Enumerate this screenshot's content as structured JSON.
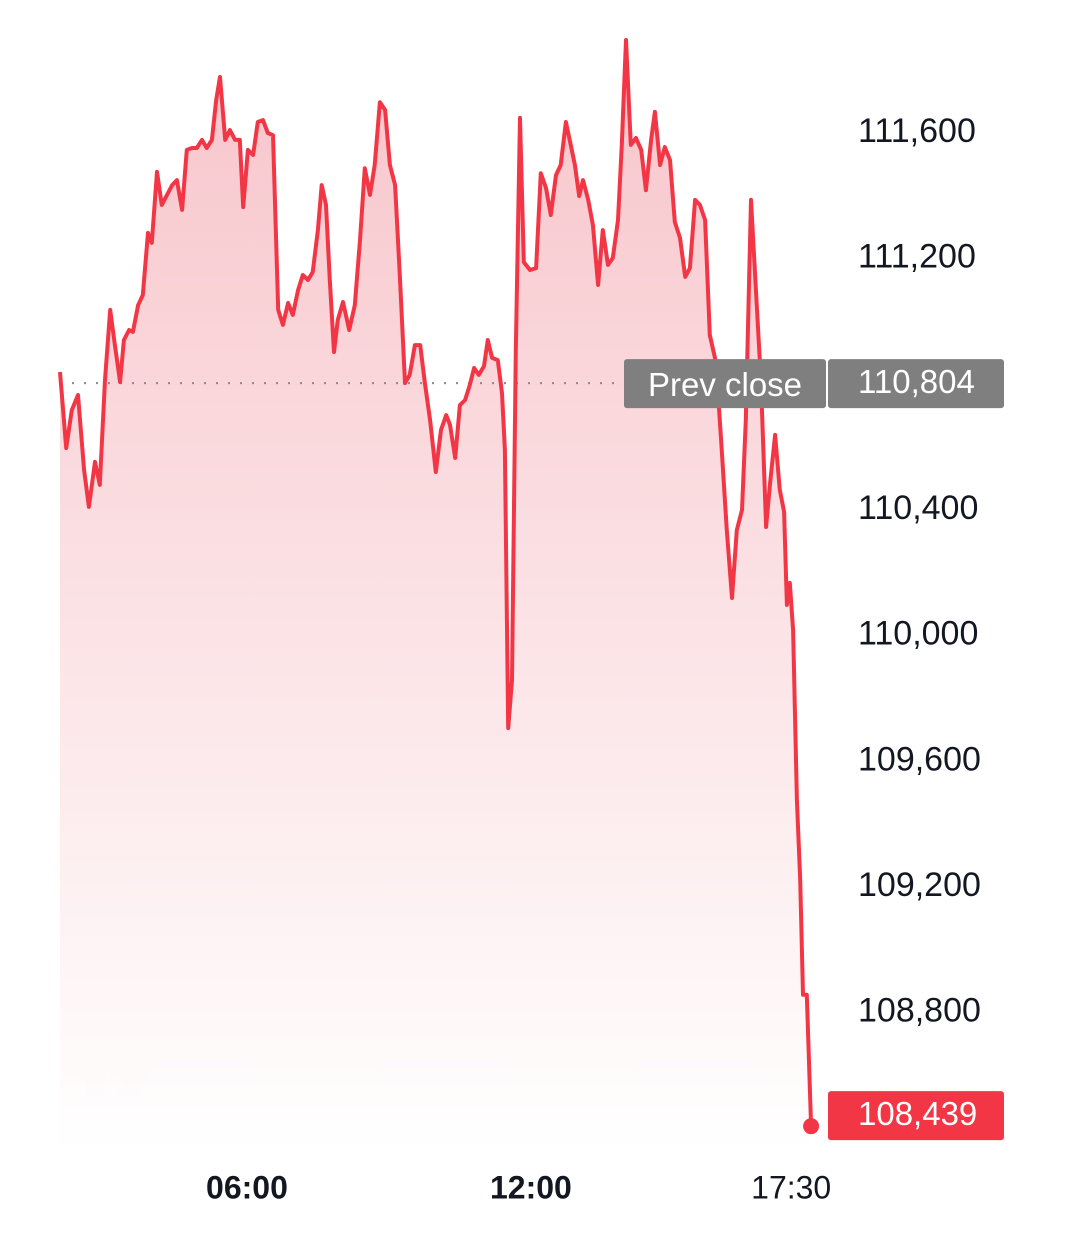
{
  "chart_data": {
    "type": "line",
    "color": "#f23645",
    "x": [
      2.05,
      2.18,
      2.3,
      2.43,
      2.56,
      2.66,
      2.79,
      2.89,
      3.0,
      3.11,
      3.21,
      3.32,
      3.4,
      3.51,
      3.59,
      3.7,
      3.8,
      3.91,
      3.99,
      4.1,
      4.2,
      4.31,
      4.42,
      4.52,
      4.63,
      4.73,
      4.84,
      4.94,
      5.05,
      5.15,
      5.26,
      5.35,
      5.43,
      5.54,
      5.64,
      5.75,
      5.85,
      5.92,
      6.02,
      6.13,
      6.23,
      6.34,
      6.44,
      6.55,
      6.66,
      6.76,
      6.87,
      6.97,
      7.08,
      7.18,
      7.29,
      7.39,
      7.5,
      7.58,
      7.67,
      7.75,
      7.84,
      7.92,
      8.03,
      8.16,
      8.28,
      8.39,
      8.49,
      8.6,
      8.7,
      8.81,
      8.92,
      9.02,
      9.13,
      9.23,
      9.34,
      9.44,
      9.55,
      9.66,
      9.76,
      9.87,
      9.99,
      10.1,
      10.21,
      10.29,
      10.4,
      10.5,
      10.61,
      10.71,
      10.8,
      10.9,
      11.01,
      11.09,
      11.18,
      11.3,
      11.39,
      11.45,
      11.52,
      11.6,
      11.68,
      11.77,
      11.85,
      11.98,
      12.11,
      12.21,
      12.32,
      12.42,
      12.53,
      12.63,
      12.74,
      12.82,
      12.93,
      13.02,
      13.1,
      13.21,
      13.31,
      13.42,
      13.52,
      13.63,
      13.73,
      13.84,
      13.92,
      14.01,
      14.11,
      14.22,
      14.33,
      14.43,
      14.54,
      14.62,
      14.73,
      14.83,
      14.94,
      15.04,
      15.15,
      15.26,
      15.36,
      15.47,
      15.57,
      15.68,
      15.78,
      15.91,
      16.02,
      16.14,
      16.25,
      16.35,
      16.46,
      16.54,
      16.65,
      16.76,
      16.86,
      16.97,
      17.05,
      17.16,
      17.26,
      17.35,
      17.41,
      17.47,
      17.54,
      17.62,
      17.69,
      17.75,
      17.83,
      17.92
    ],
    "values": [
      110839,
      110597,
      110718,
      110766,
      110527,
      110410,
      110553,
      110480,
      110814,
      111037,
      110925,
      110807,
      110941,
      110973,
      110967,
      111052,
      111084,
      111282,
      111250,
      111476,
      111371,
      111403,
      111434,
      111450,
      111355,
      111546,
      111552,
      111552,
      111578,
      111552,
      111578,
      111705,
      111778,
      111578,
      111609,
      111578,
      111578,
      111364,
      111546,
      111530,
      111635,
      111641,
      111600,
      111593,
      111037,
      110989,
      111059,
      111021,
      111100,
      111148,
      111132,
      111157,
      111291,
      111434,
      111371,
      111132,
      110903,
      111005,
      111062,
      110973,
      111052,
      111259,
      111488,
      111403,
      111498,
      111698,
      111673,
      111498,
      111434,
      111148,
      110804,
      110830,
      110925,
      110925,
      110804,
      110686,
      110521,
      110655,
      110702,
      110671,
      110566,
      110734,
      110750,
      110798,
      110852,
      110830,
      110858,
      110941,
      110884,
      110877,
      110772,
      110591,
      109706,
      109859,
      110909,
      111648,
      111189,
      111164,
      111170,
      111472,
      111425,
      111339,
      111466,
      111498,
      111635,
      111578,
      111498,
      111399,
      111450,
      111387,
      111307,
      111116,
      111291,
      111180,
      111202,
      111323,
      111562,
      111896,
      111562,
      111584,
      111546,
      111418,
      111578,
      111667,
      111498,
      111555,
      111514,
      111317,
      111266,
      111142,
      111170,
      111387,
      111371,
      111323,
      110957,
      110871,
      110623,
      110336,
      110120,
      110336,
      110400,
      110686,
      111387,
      111084,
      110814,
      110346,
      110480,
      110639,
      110464,
      110394,
      110098,
      110168,
      110018,
      109477,
      109223,
      108857,
      108857,
      108439
    ],
    "last_value_label": "108,439",
    "prev_close": {
      "text": "Prev close",
      "value": 110804,
      "label": "110,804"
    },
    "xlim": [
      2.05,
      18.32
    ],
    "xticks": [
      {
        "value": 6,
        "label": "06:00",
        "bold": true
      },
      {
        "value": 12,
        "label": "12:00",
        "bold": true
      },
      {
        "value": 17.5,
        "label": "17:30",
        "bold": false
      }
    ],
    "ylim": [
      108360,
      112020
    ],
    "yticks": [
      {
        "value": 111600,
        "label": "111,600"
      },
      {
        "value": 111200,
        "label": "111,200"
      },
      {
        "value": 110400,
        "label": "110,400"
      },
      {
        "value": 110000,
        "label": "110,000"
      },
      {
        "value": 109600,
        "label": "109,600"
      },
      {
        "value": 109200,
        "label": "109,200"
      },
      {
        "value": 108800,
        "label": "108,800"
      }
    ],
    "grid": false
  }
}
